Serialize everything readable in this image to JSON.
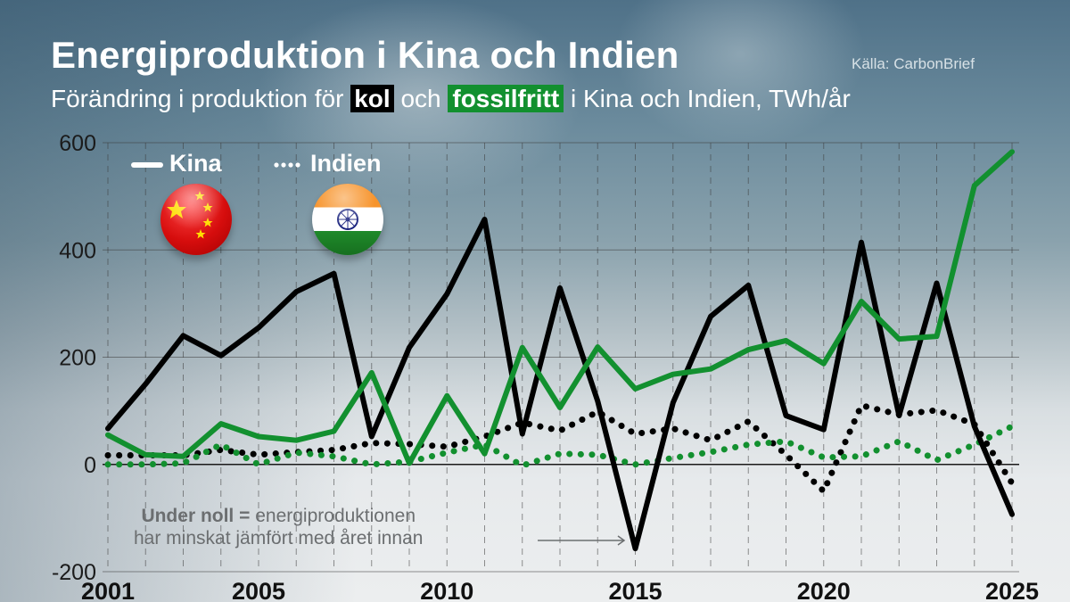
{
  "header": {
    "title": "Energiproduktion i Kina och Indien",
    "source": "Källa: CarbonBrief",
    "subtitle_pre": "Förändring i produktion för",
    "subtitle_kol": "kol",
    "subtitle_mid": "och",
    "subtitle_fossilfree": "fossilfritt",
    "subtitle_post": "i Kina och Indien, TWh/år"
  },
  "legend": {
    "china_label": "Kina",
    "india_label": "Indien",
    "china_flag_icon": "china-flag-icon",
    "india_flag_icon": "india-flag-icon"
  },
  "annotation": {
    "bold": "Under noll =",
    "line1_rest": "energiproduktionen",
    "line2": "har minskat jämfört med året innan"
  },
  "colors": {
    "coal": "#000000",
    "fossil_free": "#12902f",
    "highlight_kol_bg": "#000000",
    "highlight_green_bg": "#12902f"
  },
  "chart_data": {
    "type": "line",
    "title": "Energiproduktion i Kina och Indien",
    "subtitle": "Förändring i produktion för kol och fossilfritt i Kina och Indien, TWh/år",
    "source": "Källa: CarbonBrief",
    "xlabel": "",
    "ylabel": "TWh/år",
    "ylim": [
      -200,
      600
    ],
    "yticks": [
      -200,
      0,
      200,
      400,
      600
    ],
    "xtick_labels": [
      "2001",
      "2005",
      "2010",
      "2015",
      "2020",
      "2025"
    ],
    "grid": true,
    "legend_position": "top-left",
    "x": [
      2001,
      2002,
      2003,
      2004,
      2005,
      2006,
      2007,
      2008,
      2009,
      2010,
      2011,
      2012,
      2013,
      2014,
      2015,
      2016,
      2017,
      2018,
      2019,
      2020,
      2021,
      2022,
      2023,
      2024,
      2025
    ],
    "series": [
      {
        "name": "Kina kol",
        "style": "solid",
        "color": "#000000",
        "values": [
          67,
          150,
          240,
          203,
          255,
          322,
          356,
          52,
          218,
          318,
          457,
          57,
          329,
          118,
          -157,
          115,
          276,
          334,
          91,
          65,
          414,
          91,
          338,
          71,
          -93
        ]
      },
      {
        "name": "Kina fossilfritt",
        "style": "solid",
        "color": "#12902f",
        "values": [
          55,
          18,
          15,
          76,
          52,
          45,
          62,
          171,
          2,
          128,
          20,
          218,
          106,
          219,
          141,
          168,
          178,
          214,
          231,
          188,
          304,
          234,
          239,
          520,
          583
        ]
      },
      {
        "name": "Indien kol",
        "style": "dotted",
        "color": "#000000",
        "values": [
          17,
          17,
          17,
          27,
          18,
          23,
          27,
          40,
          38,
          33,
          52,
          78,
          63,
          98,
          57,
          67,
          45,
          80,
          18,
          -50,
          110,
          93,
          101,
          75,
          -35
        ]
      },
      {
        "name": "Indien fossilfritt",
        "style": "dotted",
        "color": "#12902f",
        "values": [
          0,
          0,
          2,
          37,
          0,
          22,
          15,
          0,
          5,
          22,
          37,
          -2,
          20,
          18,
          0,
          12,
          23,
          37,
          43,
          13,
          15,
          43,
          8,
          37,
          71
        ]
      }
    ],
    "annotations": [
      "Under noll = energiproduktionen har minskat jämfört med året innan"
    ]
  }
}
